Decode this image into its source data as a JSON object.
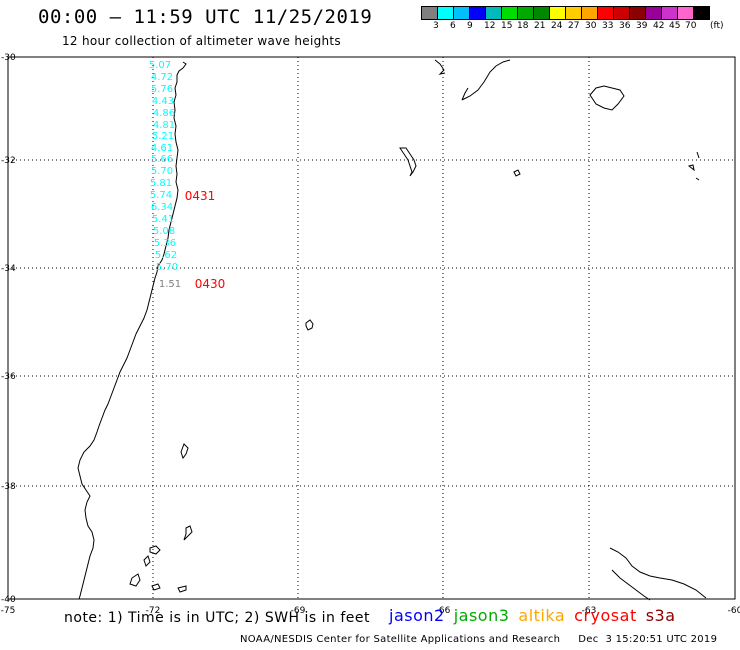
{
  "header": {
    "title": "00:00 – 11:59 UTC 11/25/2019",
    "subtitle": "12 hour collection of altimeter wave heights"
  },
  "color_scale": {
    "unit": "(ft)",
    "swatches": [
      "#808080",
      "#00ffff",
      "#00bfff",
      "#0000ff",
      "#00bbbb",
      "#00dd00",
      "#00aa00",
      "#008800",
      "#ffff00",
      "#ffcc00",
      "#ffa500",
      "#ff0000",
      "#cc0000",
      "#8b0000",
      "#990099",
      "#cc33cc",
      "#ff66cc",
      "#000000"
    ],
    "labels": [
      "3",
      "6",
      "9",
      "12",
      "15",
      "18",
      "21",
      "24",
      "27",
      "30",
      "33",
      "36",
      "39",
      "42",
      "45",
      "70"
    ]
  },
  "map": {
    "lat_labels": [
      "-30",
      "-32",
      "-34",
      "-36",
      "-38",
      "-40"
    ],
    "lon_labels": [
      "-75",
      "-72",
      "-69",
      "-66",
      "-63",
      "-60"
    ],
    "grid_color": "#000000",
    "coast_color": "#000000"
  },
  "observations": {
    "wave_heights": [
      "5.07",
      "4.72",
      "5.76",
      "4.43",
      "4.86",
      "4.81",
      "5.21",
      "4.61",
      "5.66",
      "5.70",
      "5.81",
      "5.74",
      "6.34",
      "5.41",
      "5.08",
      "5.36",
      "5.62",
      "5.70",
      "1.51"
    ],
    "wave_colors": [
      "#00ffff",
      "#00ffff",
      "#00ffff",
      "#00ffff",
      "#00ffff",
      "#00ffff",
      "#00ffff",
      "#00ffff",
      "#00ffff",
      "#00ffff",
      "#00ffff",
      "#00ffff",
      "#00ffff",
      "#00ffff",
      "#00ffff",
      "#00ffff",
      "#00ffff",
      "#00ffff",
      "#808080"
    ],
    "time_tags": [
      "0431",
      "0430"
    ],
    "time_tag_color": "#ff0000"
  },
  "footer": {
    "note": "note: 1) Time is in UTC; 2) SWH is in feet",
    "satellites": [
      {
        "name": "jason2",
        "color": "#0000ff"
      },
      {
        "name": "jason3",
        "color": "#00aa00"
      },
      {
        "name": "altika",
        "color": "#ffa500"
      },
      {
        "name": "cryosat",
        "color": "#ff0000"
      },
      {
        "name": "s3a",
        "color": "#8b0000"
      }
    ],
    "credit": "NOAA/NESDIS Center for Satellite Applications and Research",
    "timestamp": "Dec  3 15:20:51 UTC 2019"
  }
}
